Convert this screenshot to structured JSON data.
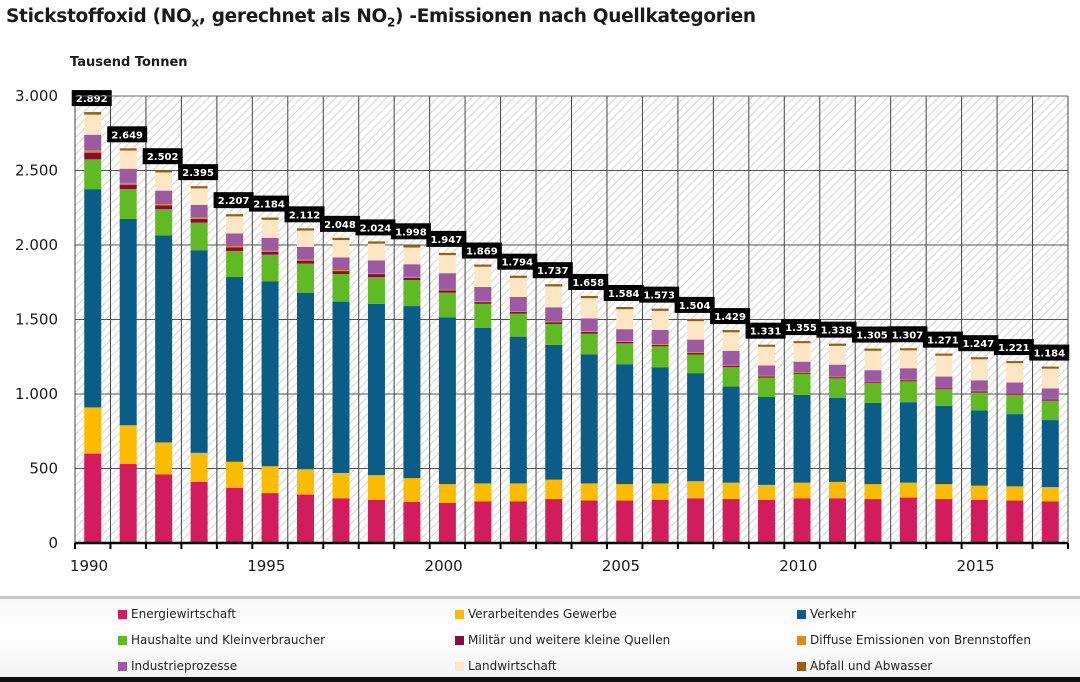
{
  "header": {
    "title_part1": "Stickstoffoxid (NO",
    "title_sub1": "x",
    "title_part2": ", gerechnet als NO",
    "title_sub2": "2",
    "title_part3": ") -Emissionen nach Quellkategorien",
    "unit_label": "Tausend Tonnen"
  },
  "chart_data": {
    "type": "bar",
    "stacked": true,
    "title": "Stickstoffoxid (NOx, gerechnet als NO2) -Emissionen nach Quellkategorien",
    "ylabel": "Tausend Tonnen",
    "xlabel": "",
    "ylim": [
      0,
      3000
    ],
    "yticks": [
      0,
      500,
      1000,
      1500,
      2000,
      2500,
      3000
    ],
    "ytick_labels": [
      "0",
      "500",
      "1.000",
      "1.500",
      "2.000",
      "2.500",
      "3.000"
    ],
    "xtick_labels": [
      "1990",
      "1995",
      "2000",
      "2005",
      "2010",
      "2015"
    ],
    "grid": true,
    "legend_position": "bottom",
    "categories": [
      "1990",
      "1991",
      "1992",
      "1993",
      "1994",
      "1995",
      "1996",
      "1997",
      "1998",
      "1999",
      "2000",
      "2001",
      "2002",
      "2003",
      "2004",
      "2005",
      "2006",
      "2007",
      "2008",
      "2009",
      "2010",
      "2011",
      "2012",
      "2013",
      "2014",
      "2015",
      "2016",
      "2017"
    ],
    "totals": [
      2892,
      2649,
      2502,
      2395,
      2207,
      2184,
      2112,
      2048,
      2024,
      1998,
      1947,
      1869,
      1794,
      1737,
      1658,
      1584,
      1573,
      1504,
      1429,
      1331,
      1355,
      1338,
      1305,
      1307,
      1271,
      1247,
      1221,
      1184
    ],
    "total_labels": [
      "2.892",
      "2.649",
      "2.502",
      "2.395",
      "2.207",
      "2.184",
      "2.112",
      "2.048",
      "2.024",
      "1.998",
      "1.947",
      "1.869",
      "1.794",
      "1.737",
      "1.658",
      "1.584",
      "1.573",
      "1.504",
      "1.429",
      "1.331",
      "1.355",
      "1.338",
      "1.305",
      "1.307",
      "1.271",
      "1.247",
      "1.221",
      "1.184"
    ],
    "series": [
      {
        "name": "Energiewirtschaft",
        "color": "#d21c5b",
        "values": [
          600,
          530,
          460,
          410,
          370,
          335,
          325,
          300,
          290,
          275,
          270,
          280,
          280,
          295,
          285,
          285,
          290,
          300,
          295,
          290,
          300,
          300,
          295,
          305,
          295,
          290,
          285,
          280
        ]
      },
      {
        "name": "Verarbeitendes Gewerbe",
        "color": "#fbbb00",
        "values": [
          310,
          260,
          215,
          195,
          175,
          180,
          170,
          170,
          165,
          160,
          125,
          120,
          120,
          130,
          115,
          110,
          110,
          115,
          110,
          100,
          105,
          110,
          100,
          100,
          100,
          95,
          95,
          95
        ]
      },
      {
        "name": "Verkehr",
        "color": "#0c5c88",
        "values": [
          1465,
          1385,
          1390,
          1360,
          1240,
          1240,
          1185,
          1150,
          1150,
          1155,
          1120,
          1045,
          985,
          905,
          865,
          805,
          780,
          725,
          645,
          590,
          590,
          565,
          545,
          540,
          525,
          505,
          485,
          450
        ]
      },
      {
        "name": "Haushalte und Kleinverbraucher",
        "color": "#5fba24",
        "values": [
          200,
          200,
          175,
          185,
          175,
          180,
          195,
          185,
          180,
          175,
          165,
          160,
          155,
          140,
          140,
          140,
          140,
          125,
          130,
          130,
          140,
          130,
          135,
          140,
          115,
          120,
          130,
          130
        ]
      },
      {
        "name": "Militär und weitere kleine Quellen",
        "color": "#8a0b3a",
        "values": [
          45,
          30,
          25,
          25,
          25,
          20,
          20,
          20,
          20,
          15,
          15,
          12,
          12,
          12,
          12,
          10,
          10,
          10,
          10,
          8,
          8,
          8,
          8,
          8,
          8,
          8,
          8,
          8
        ]
      },
      {
        "name": "Diffuse Emissionen von Brennstoffen",
        "color": "#de8b1a",
        "values": [
          15,
          12,
          10,
          10,
          8,
          8,
          7,
          7,
          7,
          6,
          6,
          6,
          5,
          5,
          5,
          5,
          5,
          5,
          5,
          4,
          4,
          4,
          4,
          4,
          4,
          4,
          4,
          4
        ]
      },
      {
        "name": "Industrieprozesse",
        "color": "#9c5aa3",
        "values": [
          105,
          95,
          90,
          85,
          85,
          85,
          85,
          85,
          85,
          85,
          110,
          95,
          95,
          95,
          85,
          80,
          95,
          85,
          95,
          70,
          70,
          80,
          73,
          76,
          70,
          70,
          70,
          70
        ]
      },
      {
        "name": "Landwirtschaft",
        "color": "#fde6c4",
        "values": [
          135,
          122,
          122,
          110,
          114,
          121,
          110,
          116,
          112,
          112,
          121,
          136,
          127,
          140,
          136,
          134,
          128,
          124,
          124,
          125,
          124,
          126,
          130,
          120,
          140,
          141,
          130,
          133
        ]
      },
      {
        "name": "Abfall und Abwasser",
        "color": "#9a5d12",
        "values": [
          17,
          15,
          15,
          15,
          15,
          15,
          15,
          15,
          15,
          15,
          15,
          15,
          15,
          15,
          15,
          15,
          15,
          15,
          15,
          14,
          14,
          15,
          15,
          14,
          14,
          14,
          14,
          14
        ]
      }
    ]
  },
  "legend": {
    "items": [
      {
        "label": "Energiewirtschaft",
        "color": "#d21c5b"
      },
      {
        "label": "Verarbeitendes Gewerbe",
        "color": "#fbbb00"
      },
      {
        "label": "Verkehr",
        "color": "#0c5c88"
      },
      {
        "label": "Haushalte und Kleinverbraucher",
        "color": "#5fba24"
      },
      {
        "label": "Militär und weitere kleine Quellen",
        "color": "#8a0b3a"
      },
      {
        "label": "Diffuse Emissionen von Brennstoffen",
        "color": "#de8b1a"
      },
      {
        "label": "Industrieprozesse",
        "color": "#9c5aa3"
      },
      {
        "label": "Landwirtschaft",
        "color": "#fde6c4"
      },
      {
        "label": "Abfall und Abwasser",
        "color": "#9a5d12"
      }
    ]
  }
}
